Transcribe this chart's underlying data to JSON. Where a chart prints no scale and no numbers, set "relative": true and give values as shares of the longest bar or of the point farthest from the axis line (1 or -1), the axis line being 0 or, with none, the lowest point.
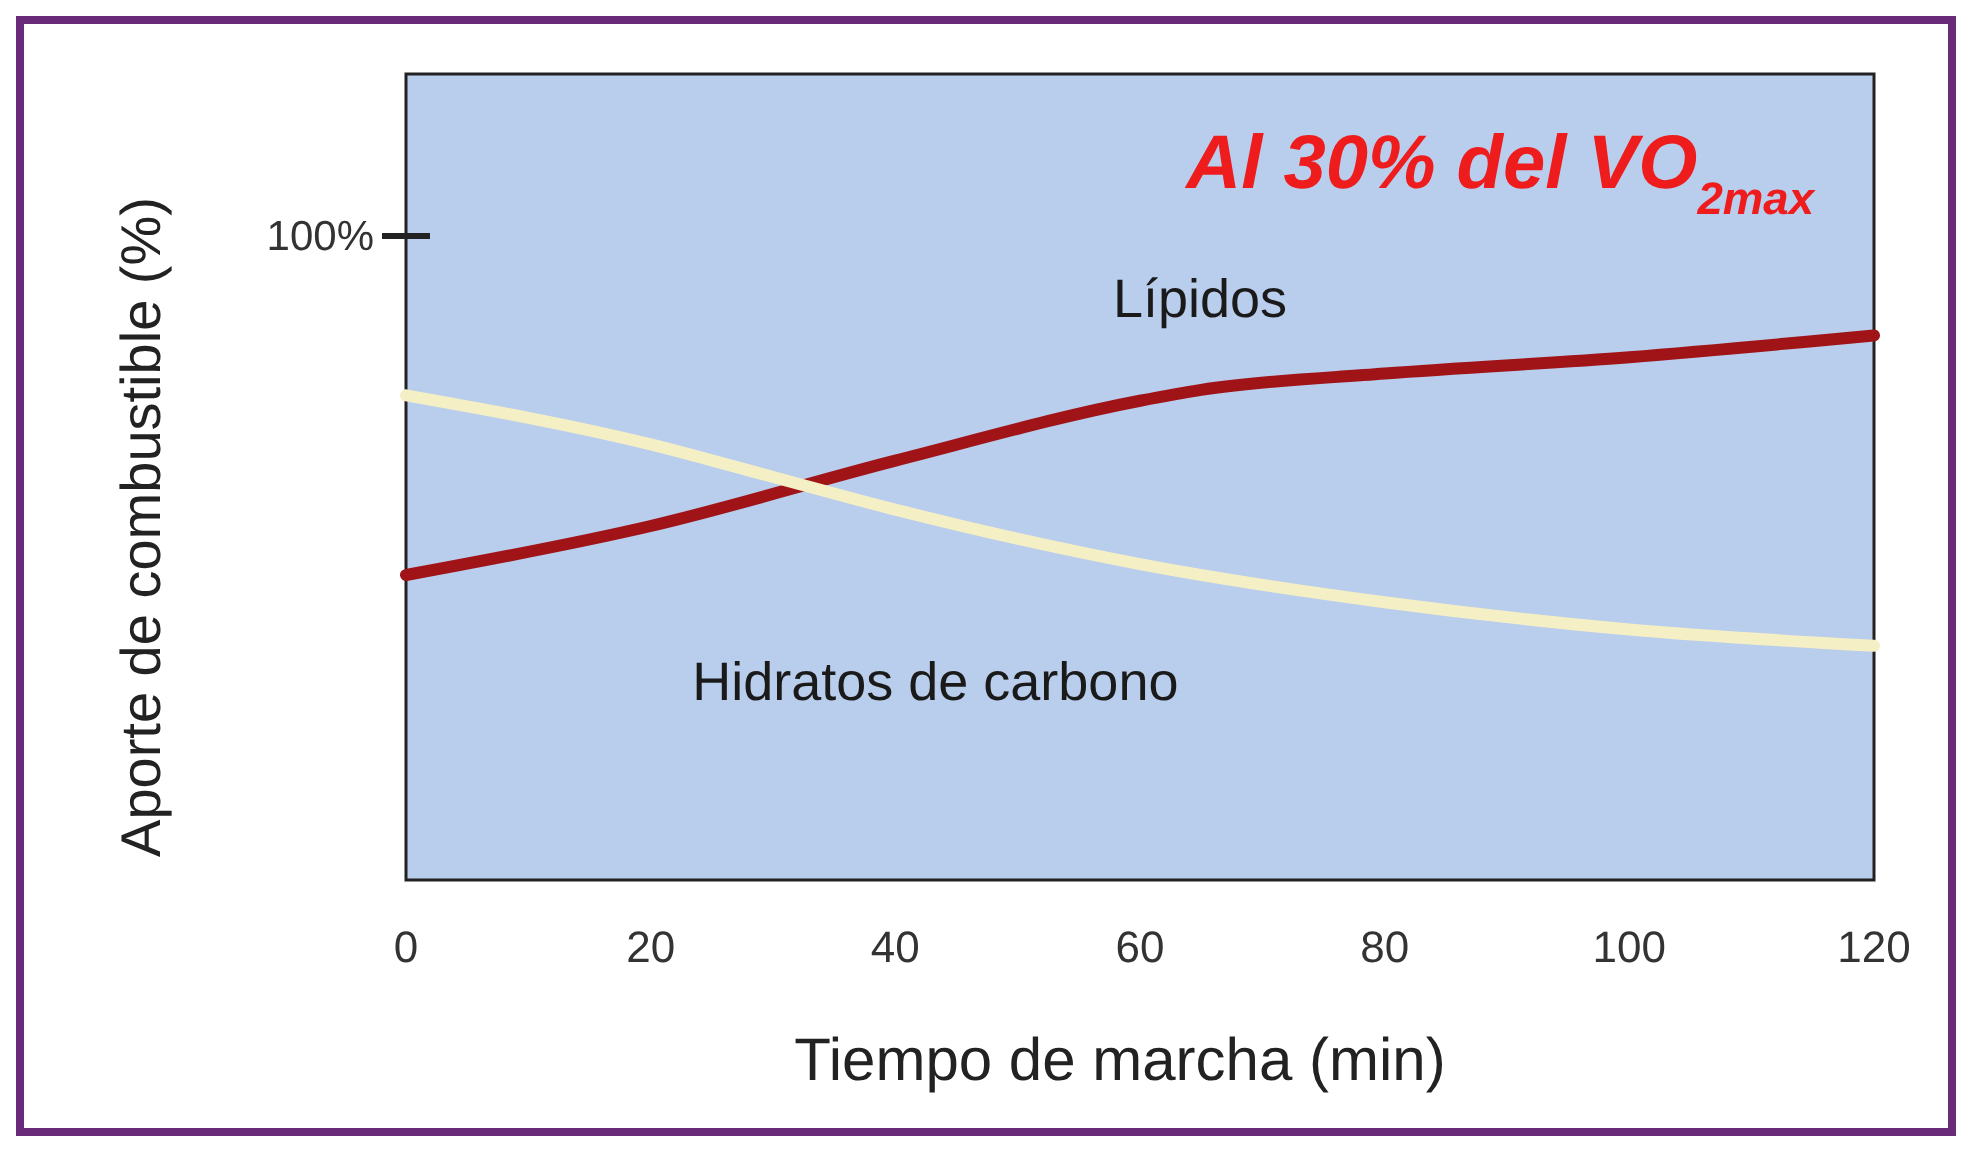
{
  "chart_data": {
    "type": "line",
    "title": "Al 30% del VO$_{2max}$",
    "xlabel": "Tiempo de marcha (min)",
    "ylabel": "Aporte de combustible (%)",
    "relative": true,
    "xlim": [
      0,
      120
    ],
    "xticks": [
      0,
      20,
      40,
      60,
      80,
      100,
      120
    ],
    "series": [
      {
        "name": "Lípidos",
        "color": "#a01418",
        "x": [
          0,
          20,
          40,
          60,
          65,
          80,
          100,
          120
        ],
        "values": [
          0.56,
          0.65,
          0.77,
          0.88,
          0.9,
          0.93,
          0.96,
          1
        ]
      },
      {
        "name": "Hidratos de carbono",
        "color": "#f4efc4",
        "x": [
          0,
          20,
          30,
          40,
          60,
          80,
          100,
          120
        ],
        "values": [
          0.89,
          0.8,
          0.74,
          0.68,
          0.58,
          0.51,
          0.46,
          0.43
        ]
      }
    ],
    "annotations": [
      "100%"
    ],
    "grid": false,
    "legend": false,
    "marker": "none",
    "line_style": "solid"
  }
}
